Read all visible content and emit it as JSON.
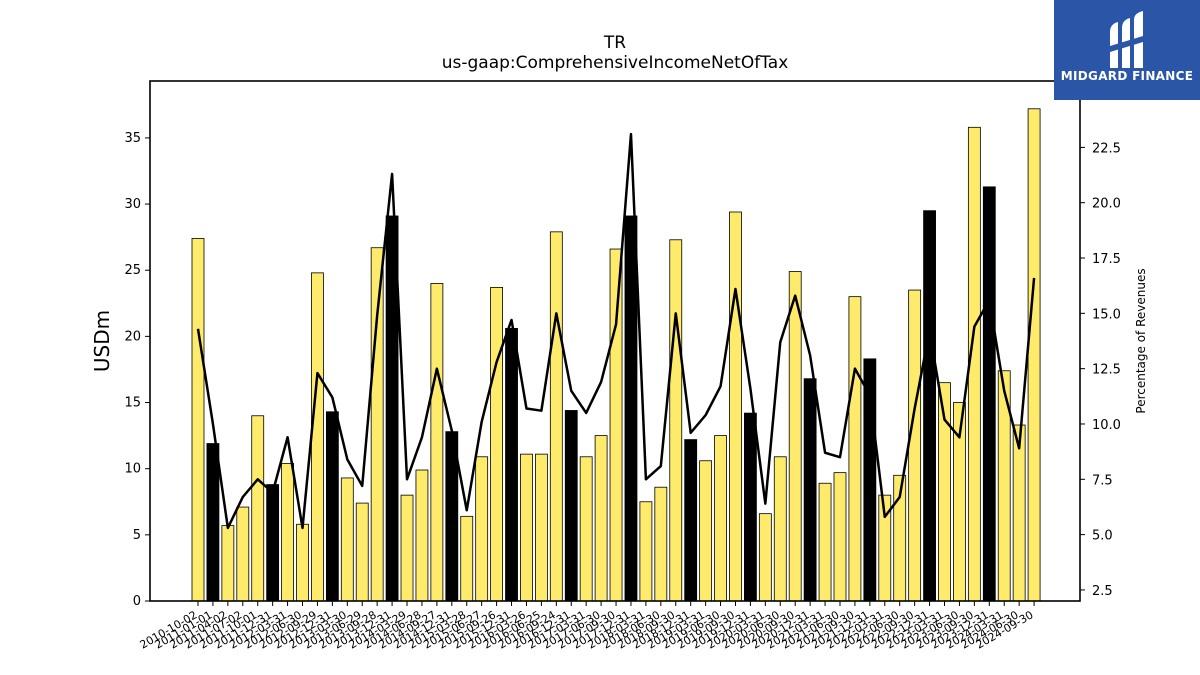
{
  "chart_data": {
    "type": "bar",
    "title": "TR",
    "subtitle": "us-gaap:ComprehensiveIncomeNetOfTax",
    "ylabel": "USDm",
    "y2label": "Percentage of Revenues",
    "ylim": [
      0,
      39.3
    ],
    "y2lim": [
      2.0,
      25.5
    ],
    "yticks": [
      0,
      5,
      10,
      15,
      20,
      25,
      30,
      35
    ],
    "y2ticks": [
      2.5,
      5.0,
      7.5,
      10.0,
      12.5,
      15.0,
      17.5,
      20.0,
      22.5
    ],
    "colors": {
      "quarter_bar": "#ffeb6b",
      "fy_bar": "#000000",
      "line": "#000000",
      "edge": "#000000"
    },
    "categories": [
      "2010-10-02",
      "2011-01-01",
      "2011-04-02",
      "2011-07-02",
      "2011-10-01",
      "2011-12-31",
      "2012-03-31",
      "2012-06-30",
      "2012-09-29",
      "2012-12-31",
      "2013-03-30",
      "2013-06-29",
      "2013-09-28",
      "2013-12-31",
      "2014-03-29",
      "2014-06-28",
      "2014-09-27",
      "2014-12-31",
      "2015-03-28",
      "2015-06-27",
      "2015-09-26",
      "2015-12-31",
      "2016-03-26",
      "2016-06-25",
      "2016-09-24",
      "2016-12-31",
      "2017-03-31",
      "2017-06-30",
      "2017-09-30",
      "2017-12-31",
      "2018-03-31",
      "2018-06-30",
      "2018-09-30",
      "2018-12-31",
      "2019-03-31",
      "2019-06-30",
      "2019-09-30",
      "2019-12-31",
      "2020-03-31",
      "2020-06-30",
      "2020-09-30",
      "2020-12-31",
      "2021-03-31",
      "2021-06-30",
      "2021-09-30",
      "2021-12-31",
      "2022-03-31",
      "2022-06-30",
      "2022-09-30",
      "2022-12-31",
      "2023-03-31",
      "2023-06-30",
      "2023-09-30",
      "2023-12-31",
      "2024-03-31",
      "2024-06-30",
      "2024-09-30"
    ],
    "x_tick_labels": [
      "2010-10-02",
      "2011-01-01",
      "2011-04-02",
      "2011-07-02",
      "2011-10-01",
      "2011-12-31",
      "2012-03-31",
      "2012-06-30",
      "2012-09-29",
      "2012-12-31",
      "2013-03-30",
      "2013-06-29",
      "2013-09-28",
      "2013-12-31",
      "2014-03-29",
      "2014-06-28",
      "2014-09-27",
      "2014-12-31",
      "2015-03-28",
      "2015-06-27",
      "2015-09-26",
      "2015-12-31",
      "2016-03-26",
      "2016-06-25",
      "2016-09-24",
      "2016-12-31",
      "2017-03-31",
      "2017-06-30",
      "2017-09-30",
      "2017-12-31",
      "2018-03-31",
      "2018-06-30",
      "2018-09-30",
      "2018-12-31",
      "2019-03-31",
      "2019-06-30",
      "2019-09-30",
      "2019-12-31",
      "2020-03-31",
      "2020-06-30",
      "2020-09-30",
      "2020-12-31",
      "2021-03-31",
      "2021-06-30",
      "2021-09-30",
      "2021-12-31",
      "2022-03-31",
      "2022-06-30",
      "2022-09-30",
      "2022-12-31",
      "2023-03-31",
      "2023-06-30",
      "2023-09-30",
      "2023-12-31",
      "2024-03-31",
      "2024-06-30",
      "2024-09-30"
    ],
    "series": [
      {
        "type": "bar",
        "values": [
          27.4,
          11.9,
          5.7,
          7.1,
          14.0,
          8.8,
          10.4,
          5.8,
          24.8,
          14.3,
          9.3,
          7.4,
          26.7,
          29.1,
          8.0,
          9.9,
          24.0,
          12.8,
          6.4,
          10.9,
          23.7,
          20.6,
          11.1,
          11.1,
          27.9,
          14.4,
          10.9,
          12.5,
          26.6,
          29.1,
          7.5,
          8.6,
          27.3,
          12.2,
          10.6,
          12.5,
          29.4,
          14.2,
          6.6,
          10.9,
          24.9,
          16.8,
          8.9,
          9.7,
          23.0,
          18.3,
          8.0,
          9.5,
          23.5,
          29.5,
          16.5,
          15.0,
          35.8,
          31.3,
          17.4,
          13.3,
          37.2
        ],
        "fiscal_year_end": [
          false,
          true,
          false,
          false,
          false,
          true,
          false,
          false,
          false,
          true,
          false,
          false,
          false,
          true,
          false,
          false,
          false,
          true,
          false,
          false,
          false,
          true,
          false,
          false,
          false,
          true,
          false,
          false,
          false,
          true,
          false,
          false,
          false,
          true,
          false,
          false,
          false,
          true,
          false,
          false,
          false,
          true,
          false,
          false,
          false,
          true,
          false,
          false,
          false,
          true,
          false,
          false,
          false,
          true,
          false,
          false,
          false
        ]
      },
      {
        "type": "line",
        "axis": "right",
        "values": [
          14.3,
          10.0,
          5.3,
          6.7,
          7.5,
          6.9,
          9.4,
          5.3,
          12.3,
          11.2,
          8.4,
          7.2,
          14.9,
          21.3,
          7.5,
          9.4,
          12.5,
          9.7,
          6.1,
          10.1,
          12.8,
          14.7,
          10.7,
          10.6,
          15.0,
          11.5,
          10.5,
          11.9,
          14.5,
          23.1,
          7.5,
          8.1,
          15.0,
          9.6,
          10.4,
          11.7,
          16.1,
          11.6,
          6.4,
          13.7,
          15.8,
          13.1,
          8.7,
          8.5,
          12.5,
          11.3,
          5.8,
          6.7,
          10.7,
          14.2,
          10.2,
          9.4,
          14.4,
          15.6,
          11.5,
          8.9,
          16.6
        ]
      }
    ]
  },
  "logo": {
    "text": "MIDGARD FINANCE"
  }
}
